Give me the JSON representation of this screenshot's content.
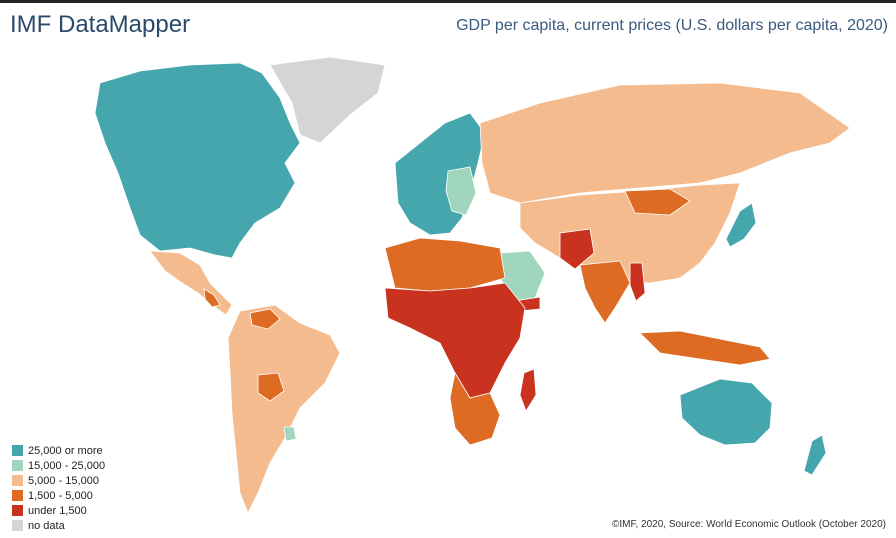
{
  "header": {
    "brand": "IMF DataMapper",
    "title": "GDP per capita, current prices (U.S. dollars per capita, 2020)"
  },
  "legend": {
    "items": [
      {
        "label": "25,000 or more",
        "color": "#46a6ad"
      },
      {
        "label": "15,000 - 25,000",
        "color": "#9fd6bd"
      },
      {
        "label": "5,000 - 15,000",
        "color": "#f4bc8e"
      },
      {
        "label": "1,500 - 5,000",
        "color": "#dd6b24"
      },
      {
        "label": "under 1,500",
        "color": "#c8321f"
      },
      {
        "label": "no data",
        "color": "#d5d5d8"
      }
    ]
  },
  "footer": {
    "source": "©IMF, 2020, Source: World Economic Outlook (October 2020)"
  }
}
